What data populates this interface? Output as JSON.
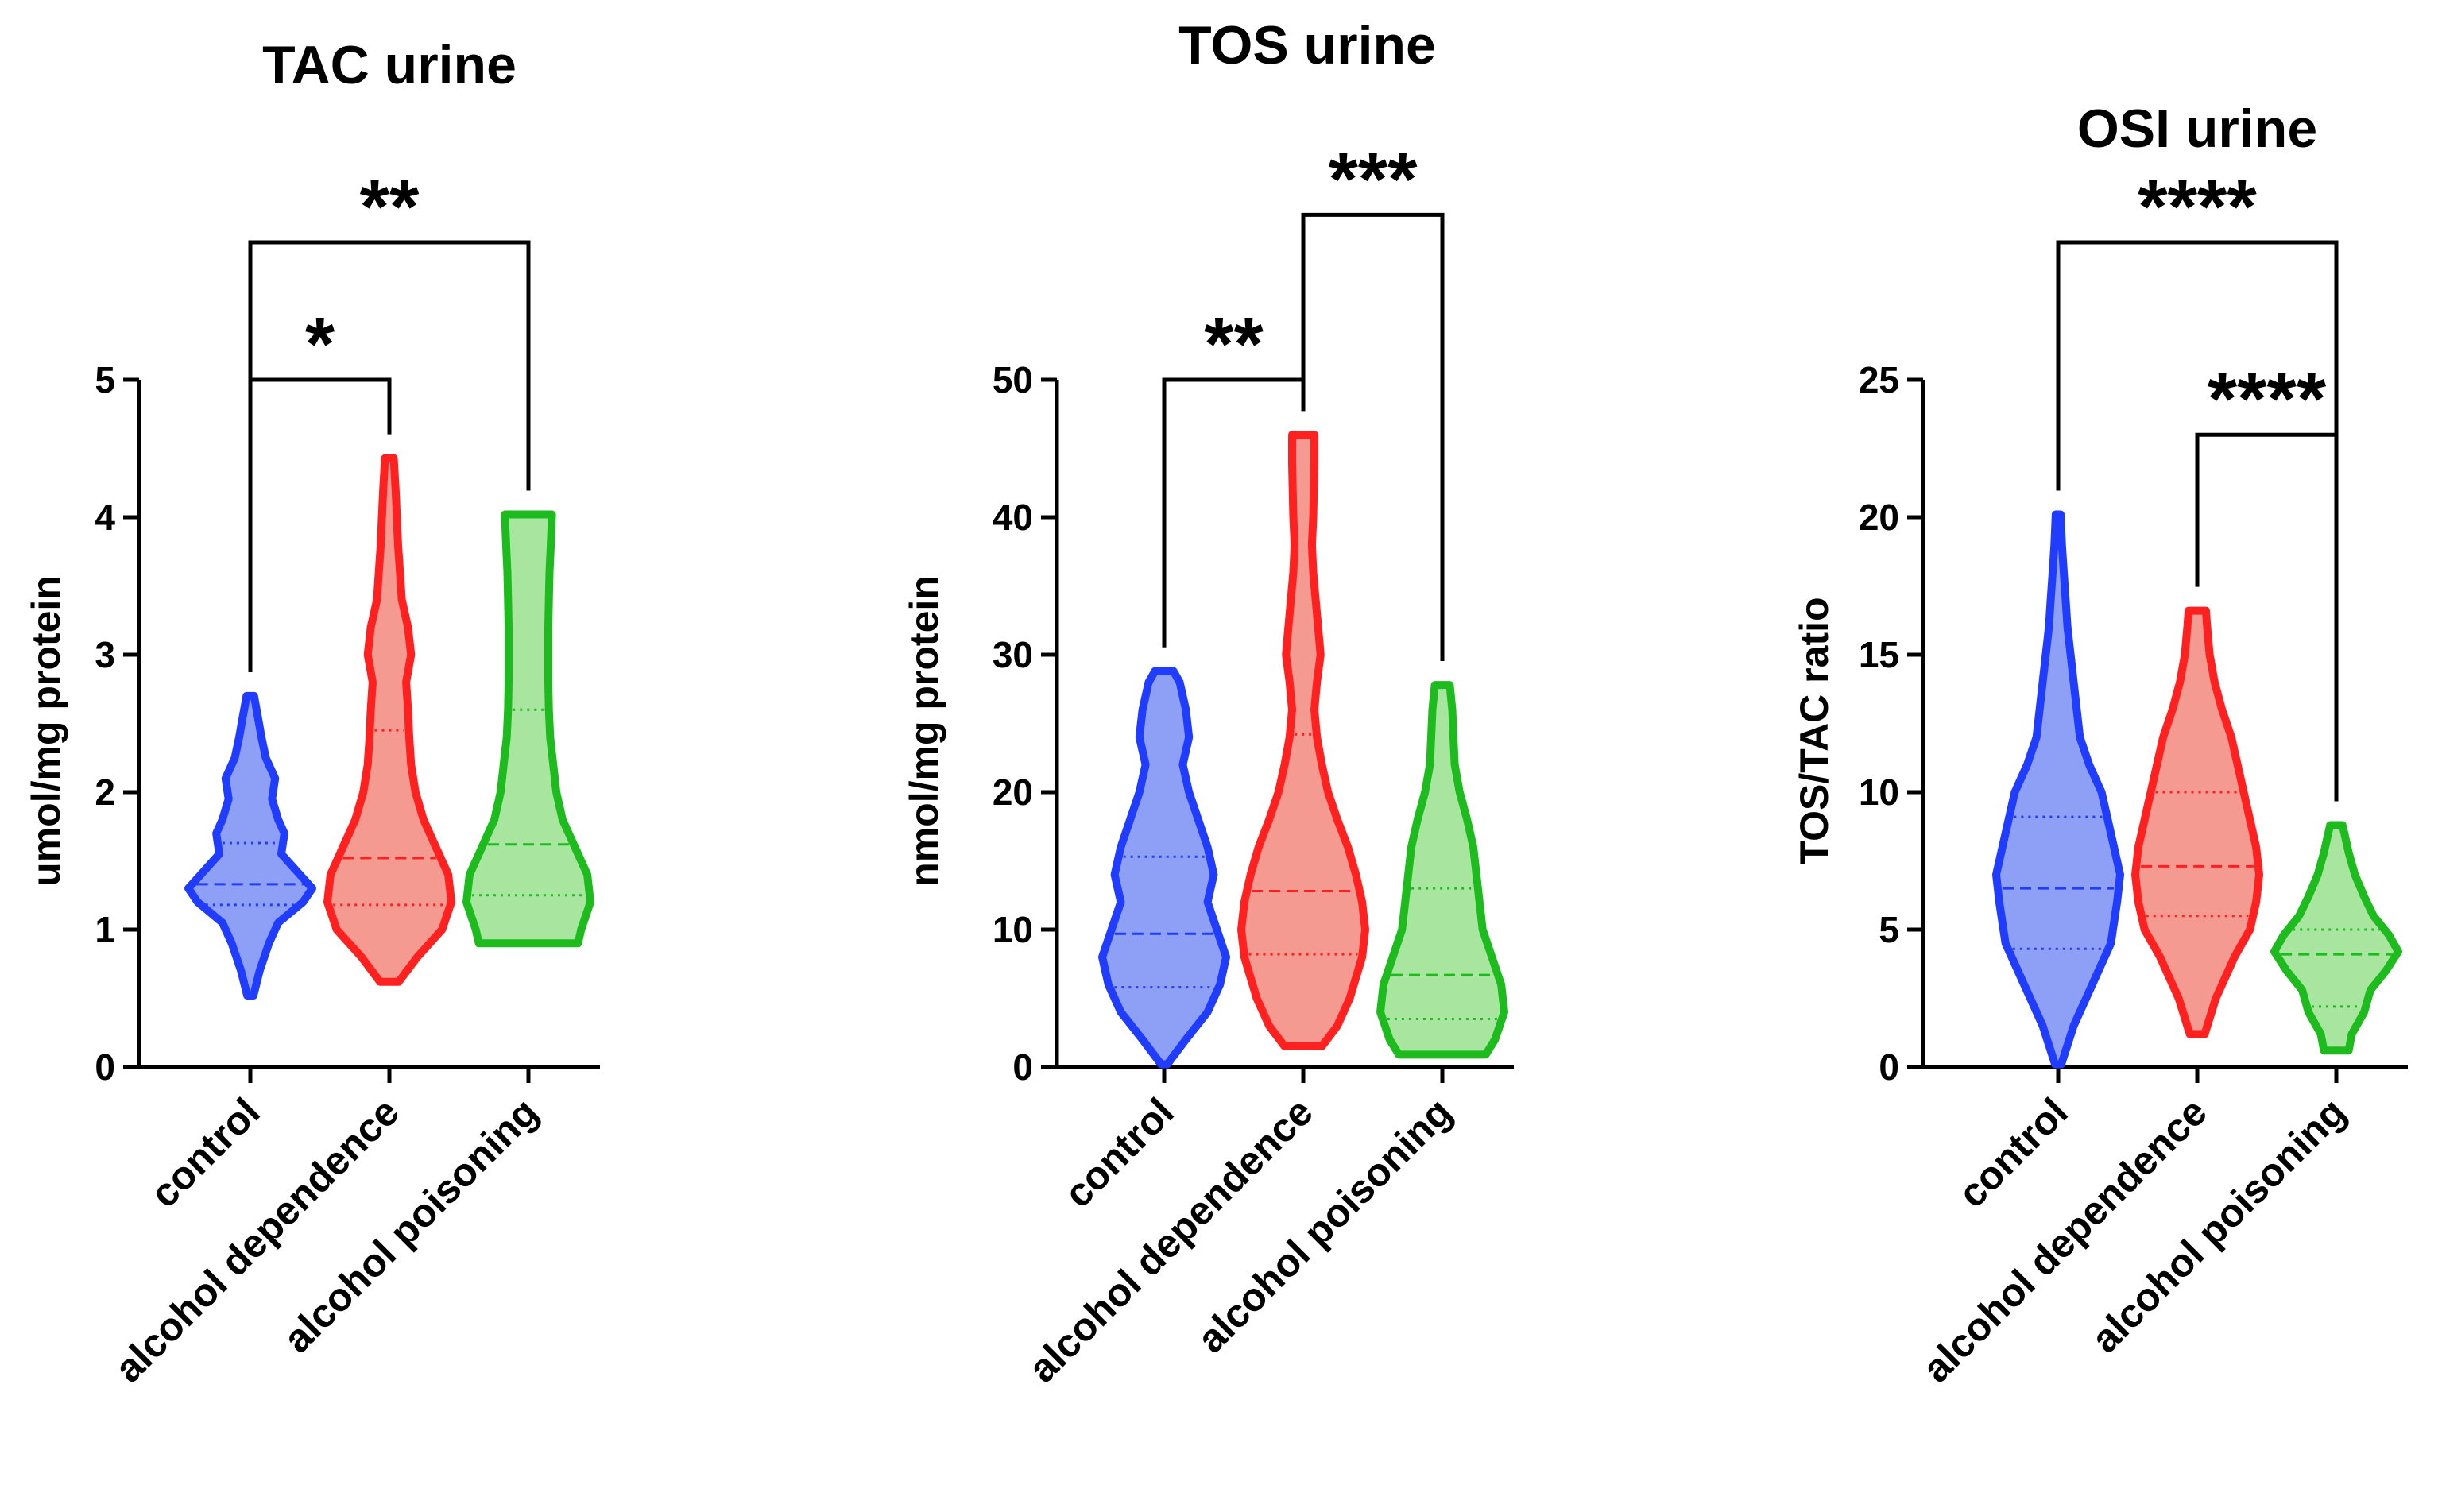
{
  "chart_data": [
    {
      "type": "violin",
      "title": "TAC urine",
      "ylabel": "umol/mg protein",
      "ylim": [
        0,
        5
      ],
      "yticks": [
        "0",
        "1",
        "2",
        "3",
        "4",
        "5"
      ],
      "categories": [
        "control",
        "alcohol dependence",
        "alcohol poisoning"
      ],
      "series": [
        {
          "name": "control",
          "color": "#1f3cff",
          "fill": "#8ea0f5",
          "min": 0.52,
          "max": 2.7,
          "median": 1.33,
          "q1": 1.18,
          "q3": 1.63,
          "profile": [
            [
              0.52,
              0.05
            ],
            [
              0.7,
              0.15
            ],
            [
              0.9,
              0.3
            ],
            [
              1.05,
              0.45
            ],
            [
              1.2,
              0.85
            ],
            [
              1.3,
              1.0
            ],
            [
              1.4,
              0.8
            ],
            [
              1.55,
              0.5
            ],
            [
              1.7,
              0.55
            ],
            [
              1.8,
              0.45
            ],
            [
              1.95,
              0.35
            ],
            [
              2.1,
              0.4
            ],
            [
              2.25,
              0.25
            ],
            [
              2.4,
              0.18
            ],
            [
              2.55,
              0.12
            ],
            [
              2.7,
              0.06
            ]
          ]
        },
        {
          "name": "alcohol dependence",
          "color": "#ff2020",
          "fill": "#f59a90",
          "min": 0.62,
          "max": 4.43,
          "median": 1.52,
          "q1": 1.18,
          "q3": 2.45,
          "profile": [
            [
              0.62,
              0.15
            ],
            [
              0.8,
              0.45
            ],
            [
              1.0,
              0.85
            ],
            [
              1.2,
              1.0
            ],
            [
              1.4,
              0.95
            ],
            [
              1.6,
              0.75
            ],
            [
              1.8,
              0.55
            ],
            [
              2.0,
              0.42
            ],
            [
              2.2,
              0.35
            ],
            [
              2.4,
              0.32
            ],
            [
              2.6,
              0.3
            ],
            [
              2.8,
              0.27
            ],
            [
              3.0,
              0.35
            ],
            [
              3.2,
              0.3
            ],
            [
              3.4,
              0.2
            ],
            [
              3.6,
              0.17
            ],
            [
              3.8,
              0.14
            ],
            [
              4.0,
              0.12
            ],
            [
              4.2,
              0.1
            ],
            [
              4.43,
              0.07
            ]
          ]
        },
        {
          "name": "alcohol poisoning",
          "color": "#1dbb1d",
          "fill": "#a8e6a0",
          "min": 0.9,
          "max": 4.02,
          "median": 1.62,
          "q1": 1.25,
          "q3": 2.6,
          "profile": [
            [
              0.9,
              0.8
            ],
            [
              1.0,
              0.85
            ],
            [
              1.2,
              1.0
            ],
            [
              1.4,
              0.95
            ],
            [
              1.6,
              0.75
            ],
            [
              1.8,
              0.55
            ],
            [
              2.0,
              0.45
            ],
            [
              2.2,
              0.4
            ],
            [
              2.4,
              0.35
            ],
            [
              2.6,
              0.33
            ],
            [
              2.8,
              0.32
            ],
            [
              3.0,
              0.32
            ],
            [
              3.2,
              0.32
            ],
            [
              3.4,
              0.33
            ],
            [
              3.6,
              0.34
            ],
            [
              3.8,
              0.36
            ],
            [
              4.02,
              0.38
            ]
          ]
        }
      ],
      "brackets": [
        {
          "from": 0,
          "to": 1,
          "y": 5.0,
          "label": "*"
        },
        {
          "from": 0,
          "to": 2,
          "y": 6.0,
          "label": "**"
        }
      ]
    },
    {
      "type": "violin",
      "title": "TOS urine",
      "ylabel": "nmol/mg protein",
      "ylim": [
        0,
        50
      ],
      "yticks": [
        "0",
        "10",
        "20",
        "30",
        "40",
        "50"
      ],
      "categories": [
        "control",
        "alcohol dependence",
        "alcohol poisoning"
      ],
      "series": [
        {
          "name": "control",
          "color": "#1f3cff",
          "fill": "#8ea0f5",
          "min": 0.2,
          "max": 28.8,
          "median": 9.7,
          "q1": 5.8,
          "q3": 15.3,
          "profile": [
            [
              0.2,
              0.05
            ],
            [
              2,
              0.35
            ],
            [
              4,
              0.7
            ],
            [
              6,
              0.9
            ],
            [
              8,
              1.0
            ],
            [
              10,
              0.85
            ],
            [
              12,
              0.7
            ],
            [
              14,
              0.8
            ],
            [
              16,
              0.7
            ],
            [
              18,
              0.55
            ],
            [
              20,
              0.4
            ],
            [
              22,
              0.3
            ],
            [
              24,
              0.4
            ],
            [
              26,
              0.35
            ],
            [
              28,
              0.25
            ],
            [
              28.8,
              0.15
            ]
          ]
        },
        {
          "name": "alcohol dependence",
          "color": "#ff2020",
          "fill": "#f59a90",
          "min": 1.5,
          "max": 46.0,
          "median": 12.8,
          "q1": 8.2,
          "q3": 24.2,
          "profile": [
            [
              1.5,
              0.3
            ],
            [
              3,
              0.55
            ],
            [
              5,
              0.75
            ],
            [
              8,
              0.95
            ],
            [
              10,
              1.0
            ],
            [
              12,
              0.95
            ],
            [
              14,
              0.85
            ],
            [
              16,
              0.72
            ],
            [
              18,
              0.55
            ],
            [
              20,
              0.4
            ],
            [
              22,
              0.3
            ],
            [
              24,
              0.22
            ],
            [
              26,
              0.18
            ],
            [
              28,
              0.22
            ],
            [
              30,
              0.28
            ],
            [
              32,
              0.24
            ],
            [
              34,
              0.2
            ],
            [
              36,
              0.16
            ],
            [
              38,
              0.14
            ],
            [
              40,
              0.16
            ],
            [
              42,
              0.17
            ],
            [
              44,
              0.18
            ],
            [
              46,
              0.18
            ]
          ]
        },
        {
          "name": "alcohol poisoning",
          "color": "#1dbb1d",
          "fill": "#a8e6a0",
          "min": 0.9,
          "max": 27.8,
          "median": 6.7,
          "q1": 3.5,
          "q3": 13.0,
          "profile": [
            [
              0.9,
              0.7
            ],
            [
              2,
              0.85
            ],
            [
              4,
              1.0
            ],
            [
              6,
              0.95
            ],
            [
              8,
              0.8
            ],
            [
              10,
              0.65
            ],
            [
              12,
              0.6
            ],
            [
              14,
              0.55
            ],
            [
              16,
              0.5
            ],
            [
              18,
              0.4
            ],
            [
              20,
              0.28
            ],
            [
              22,
              0.2
            ],
            [
              24,
              0.18
            ],
            [
              26,
              0.16
            ],
            [
              27.8,
              0.12
            ]
          ]
        }
      ],
      "brackets": [
        {
          "from": 0,
          "to": 1,
          "y": 50.0,
          "label": "**"
        },
        {
          "from": 1,
          "to": 2,
          "y": 62.0,
          "label": "***"
        }
      ]
    },
    {
      "type": "violin",
      "title": "OSI urine",
      "ylabel": "TOS/TAC ratio",
      "ylim": [
        0,
        25
      ],
      "yticks": [
        "0",
        "5",
        "10",
        "15",
        "20",
        "25"
      ],
      "categories": [
        "control",
        "alcohol dependence",
        "alcohol poisoning"
      ],
      "series": [
        {
          "name": "control",
          "color": "#1f3cff",
          "fill": "#8ea0f5",
          "min": 0.1,
          "max": 20.1,
          "median": 6.5,
          "q1": 4.3,
          "q3": 9.1,
          "profile": [
            [
              0.1,
              0.05
            ],
            [
              1.5,
              0.25
            ],
            [
              3,
              0.55
            ],
            [
              4.5,
              0.85
            ],
            [
              6,
              0.95
            ],
            [
              7,
              1.0
            ],
            [
              8,
              0.9
            ],
            [
              9,
              0.8
            ],
            [
              10,
              0.7
            ],
            [
              11,
              0.5
            ],
            [
              12,
              0.35
            ],
            [
              13,
              0.3
            ],
            [
              14,
              0.25
            ],
            [
              15,
              0.2
            ],
            [
              16,
              0.15
            ],
            [
              17,
              0.12
            ],
            [
              18,
              0.09
            ],
            [
              19,
              0.06
            ],
            [
              20.1,
              0.04
            ]
          ]
        },
        {
          "name": "alcohol dependence",
          "color": "#ff2020",
          "fill": "#f59a90",
          "min": 1.2,
          "max": 16.6,
          "median": 7.3,
          "q1": 5.5,
          "q3": 10.0,
          "profile": [
            [
              1.2,
              0.12
            ],
            [
              2.5,
              0.3
            ],
            [
              4,
              0.6
            ],
            [
              5,
              0.85
            ],
            [
              6,
              0.95
            ],
            [
              7,
              1.0
            ],
            [
              8,
              0.95
            ],
            [
              9,
              0.85
            ],
            [
              10,
              0.75
            ],
            [
              11,
              0.65
            ],
            [
              12,
              0.55
            ],
            [
              13,
              0.4
            ],
            [
              14,
              0.28
            ],
            [
              15,
              0.2
            ],
            [
              16,
              0.16
            ],
            [
              16.6,
              0.14
            ]
          ]
        },
        {
          "name": "alcohol poisoning",
          "color": "#1dbb1d",
          "fill": "#a8e6a0",
          "min": 0.6,
          "max": 8.8,
          "median": 4.1,
          "q1": 2.2,
          "q3": 5.0,
          "profile": [
            [
              0.6,
              0.2
            ],
            [
              1.2,
              0.25
            ],
            [
              2,
              0.45
            ],
            [
              2.8,
              0.55
            ],
            [
              3.5,
              0.8
            ],
            [
              4.2,
              1.0
            ],
            [
              4.8,
              0.85
            ],
            [
              5.5,
              0.6
            ],
            [
              6.2,
              0.45
            ],
            [
              7,
              0.3
            ],
            [
              7.8,
              0.2
            ],
            [
              8.8,
              0.1
            ]
          ]
        }
      ],
      "brackets": [
        {
          "from": 0,
          "to": 2,
          "y": 30.0,
          "label": "****"
        },
        {
          "from": 1,
          "to": 2,
          "y": 23.0,
          "label": "****"
        }
      ]
    }
  ]
}
